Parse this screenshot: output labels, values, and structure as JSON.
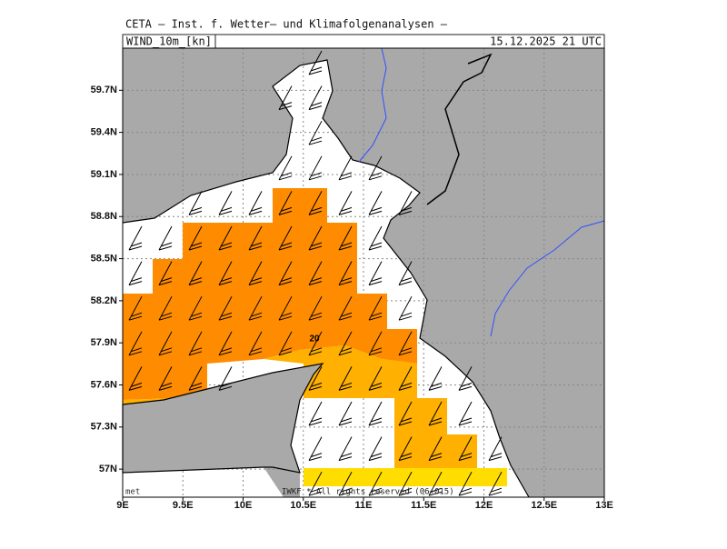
{
  "header": {
    "title": "CETA – Inst. f. Wetter– und Klimafolgenanalysen –",
    "field": "WIND_10m_[kn]",
    "valid_time": "15.12.2025 21 UTC"
  },
  "map": {
    "xlim": [
      9,
      13
    ],
    "ylim": [
      56.8,
      60.0
    ],
    "xticks": [
      {
        "value": 9,
        "label": "9E"
      },
      {
        "value": 9.5,
        "label": "9.5E"
      },
      {
        "value": 10,
        "label": "10E"
      },
      {
        "value": 10.5,
        "label": "10.5E"
      },
      {
        "value": 11,
        "label": "11E"
      },
      {
        "value": 11.5,
        "label": "11.5E"
      },
      {
        "value": 12,
        "label": "12E"
      },
      {
        "value": 12.5,
        "label": "12.5E"
      },
      {
        "value": 13,
        "label": "13E"
      }
    ],
    "yticks": [
      {
        "value": 57,
        "label": "57N"
      },
      {
        "value": 57.3,
        "label": "57.3N"
      },
      {
        "value": 57.6,
        "label": "57.6N"
      },
      {
        "value": 57.9,
        "label": "57.9N"
      },
      {
        "value": 58.2,
        "label": "58.2N"
      },
      {
        "value": 58.5,
        "label": "58.5N"
      },
      {
        "value": 58.8,
        "label": "58.8N"
      },
      {
        "value": 59.1,
        "label": "59.1N"
      },
      {
        "value": 59.4,
        "label": "59.4N"
      },
      {
        "value": 59.7,
        "label": "59.7N"
      }
    ],
    "contour_label": "20",
    "footer_left": "met",
    "footer_center": "IWKF * All rights reserved (06+015)"
  }
}
